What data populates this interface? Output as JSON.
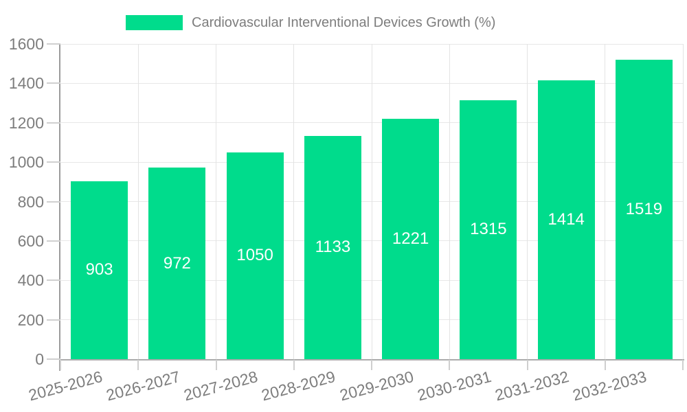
{
  "legend": {
    "label": "Cardiovascular Interventional Devices Growth (%)"
  },
  "chart_data": {
    "type": "bar",
    "title": "Cardiovascular Interventional Devices Growth (%)",
    "categories": [
      "2025-2026",
      "2026-2027",
      "2027-2028",
      "2028-2029",
      "2029-2030",
      "2030-2031",
      "2031-2032",
      "2032-2033"
    ],
    "values": [
      903,
      972,
      1050,
      1133,
      1221,
      1315,
      1414,
      1519
    ],
    "yticks": [
      0,
      200,
      400,
      600,
      800,
      1000,
      1200,
      1400,
      1600
    ],
    "ylim": [
      0,
      1600
    ],
    "xlabel": "",
    "ylabel": "",
    "grid": true,
    "legend_position": "top",
    "bar_color": "#00DC8C",
    "value_label_color": "#ffffff",
    "axis_text_color": "#7d7d7d"
  }
}
